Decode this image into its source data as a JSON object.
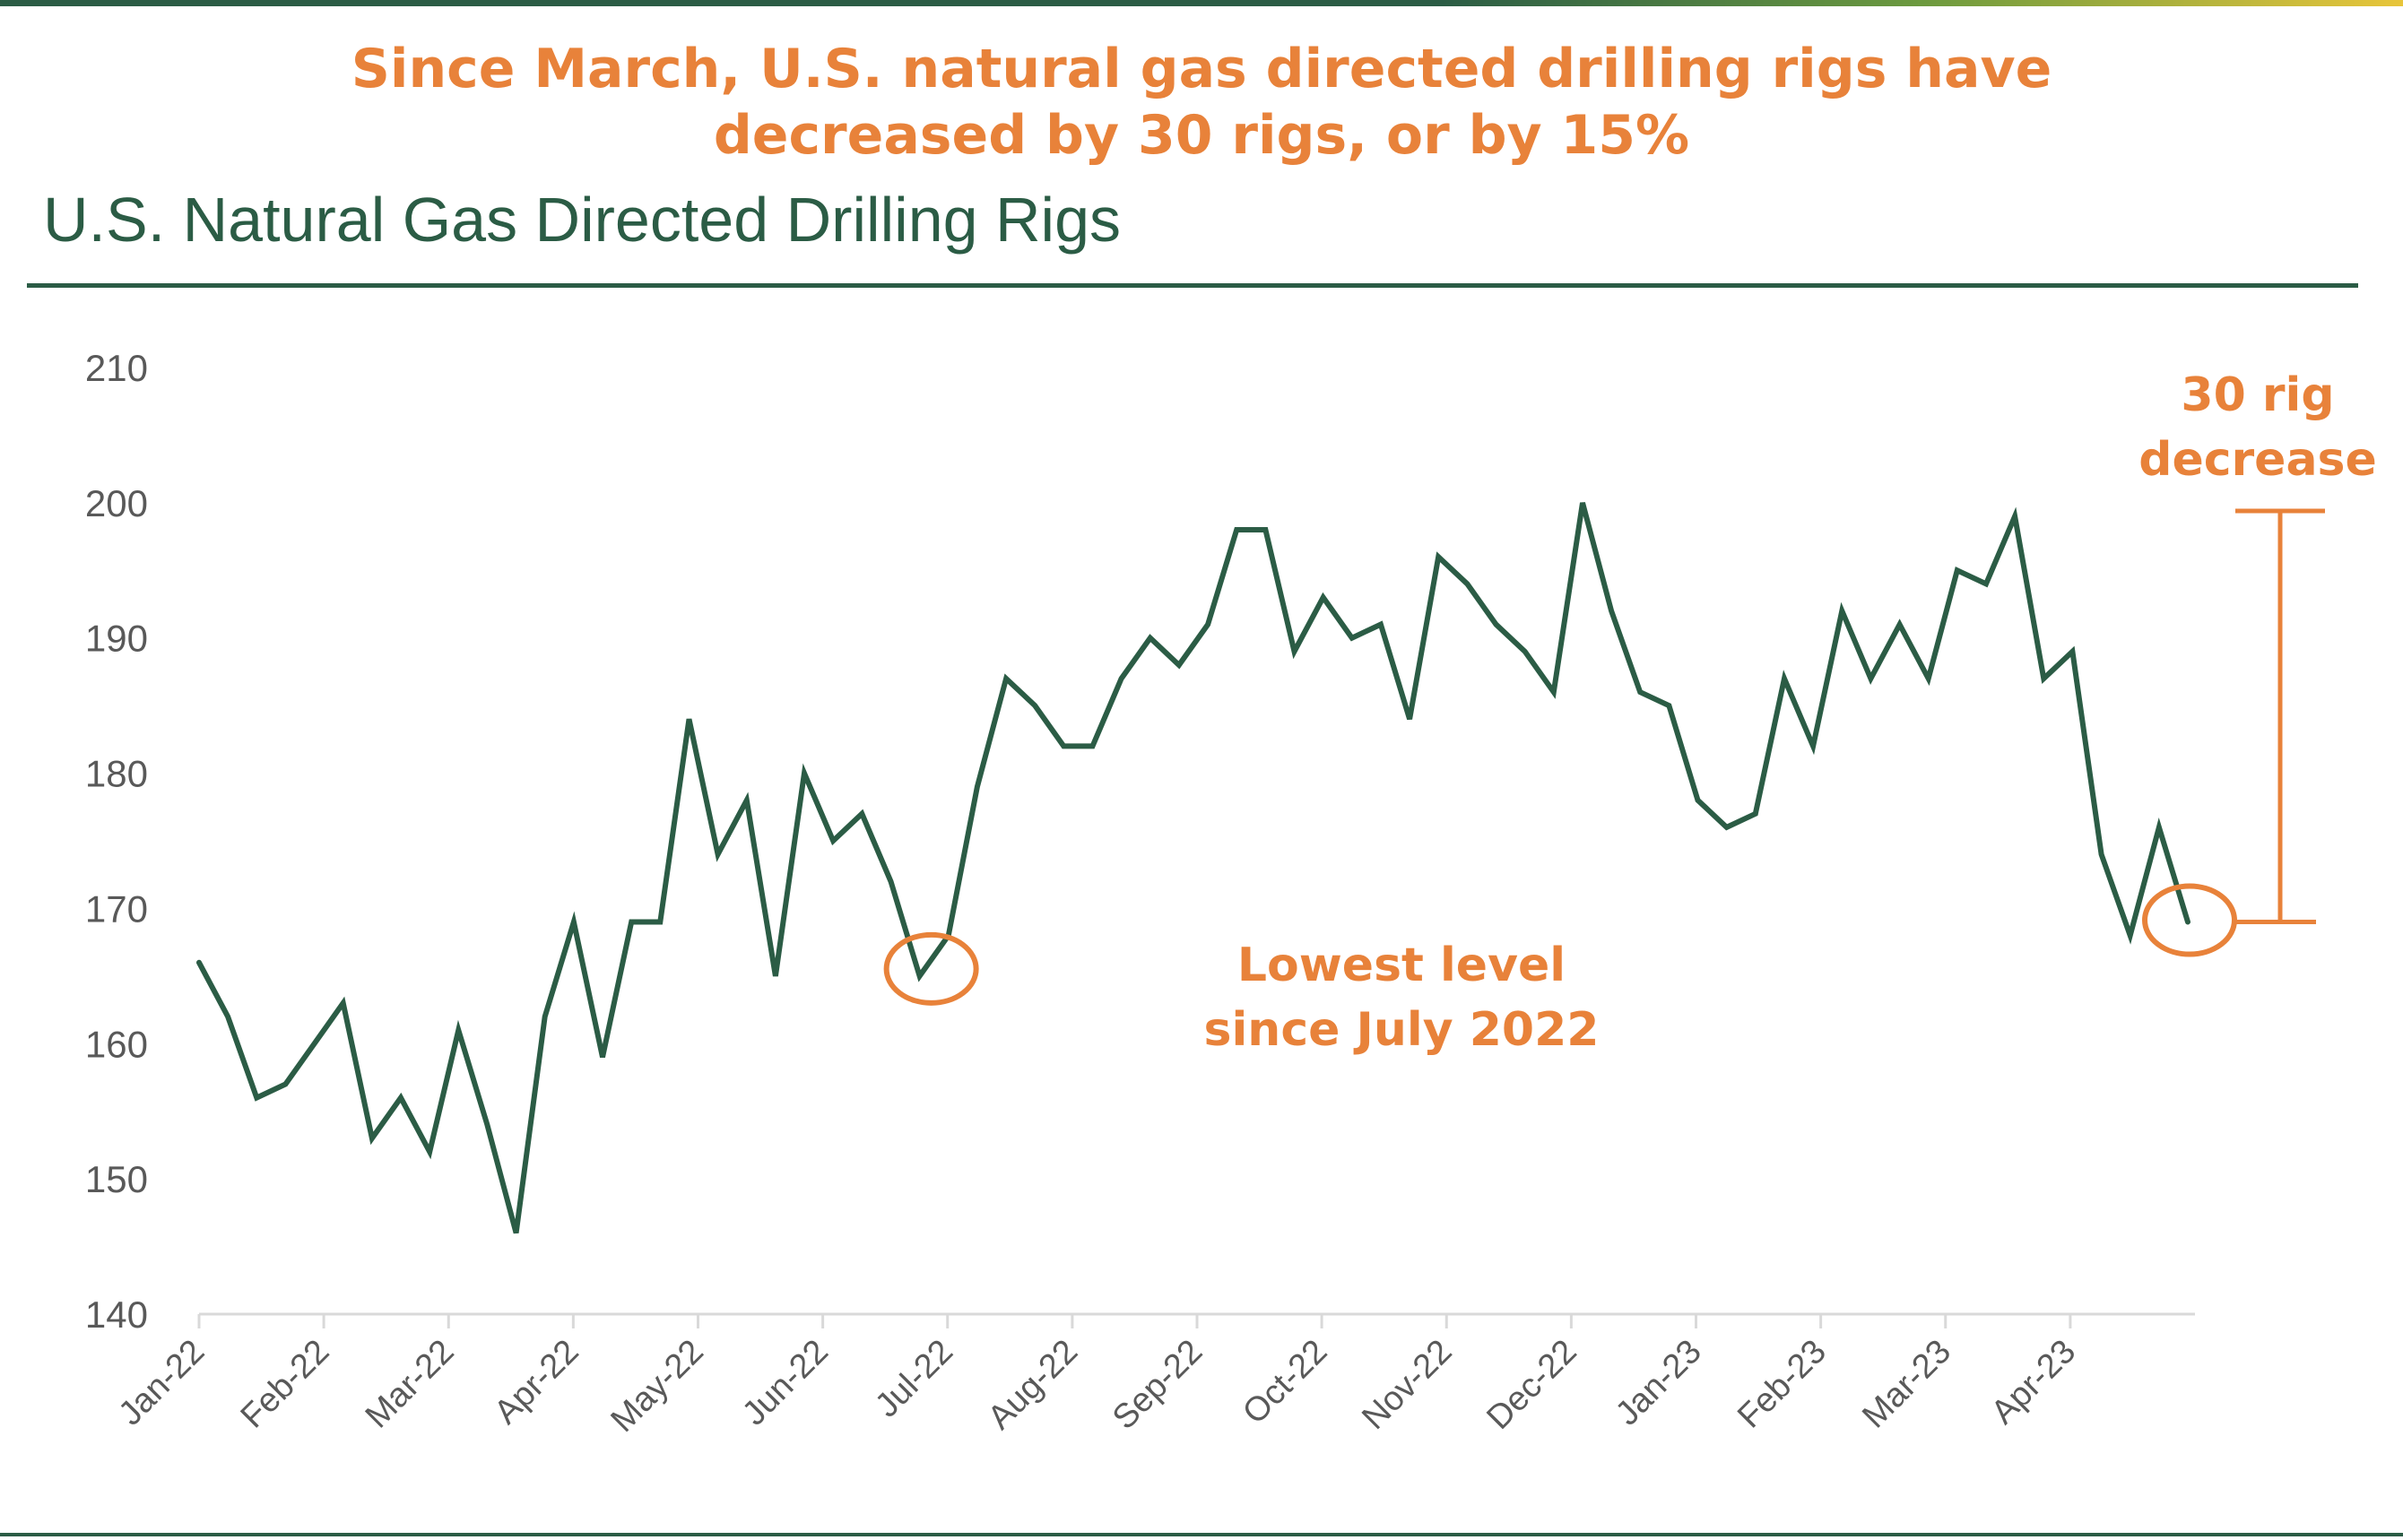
{
  "header": {
    "headline_line1": "Since March, U.S. natural gas directed drilling rigs have",
    "headline_line2": "decreased by 30 rigs, or by 15%"
  },
  "colors": {
    "line": "#2b5c45",
    "accent": "#e8823a",
    "axis_text": "#595959"
  },
  "chart_data": {
    "type": "line",
    "title": "U.S. Natural Gas Directed Drilling Rigs",
    "xlabel": "",
    "ylabel": "",
    "ylim": [
      140,
      210
    ],
    "yticks": [
      140,
      150,
      160,
      170,
      180,
      190,
      200,
      210
    ],
    "x_tick_labels": [
      "Jan-22",
      "Feb-22",
      "Mar-22",
      "Apr-22",
      "May-22",
      "Jun-22",
      "Jul-22",
      "Aug-22",
      "Sep-22",
      "Oct-22",
      "Nov-22",
      "Dec-22",
      "Jan-23",
      "Feb-23",
      "Mar-23",
      "Apr-23"
    ],
    "grid": false,
    "legend": "none",
    "series": [
      {
        "values": [
          166,
          162,
          156,
          157,
          160,
          163,
          153,
          156,
          152,
          161,
          154,
          146,
          162,
          169,
          159,
          169,
          169,
          184,
          174,
          178,
          165,
          180,
          175,
          177,
          172,
          165,
          168,
          179,
          187,
          185,
          182,
          182,
          187,
          190,
          188,
          191,
          198,
          198,
          189,
          193,
          190,
          191,
          184,
          196,
          194,
          191,
          189,
          186,
          200,
          192,
          186,
          185,
          178,
          176,
          177,
          187,
          182,
          192,
          187,
          191,
          187,
          195,
          194,
          199,
          187,
          189,
          174,
          168,
          176,
          169
        ]
      }
    ],
    "annotations": [
      {
        "text_line1": "Lowest level",
        "text_line2": "since July 2022",
        "circled_value": 165
      },
      {
        "text_line1": "30 rig",
        "text_line2": "decrease",
        "from_value": 199,
        "to_value": 169
      }
    ]
  }
}
